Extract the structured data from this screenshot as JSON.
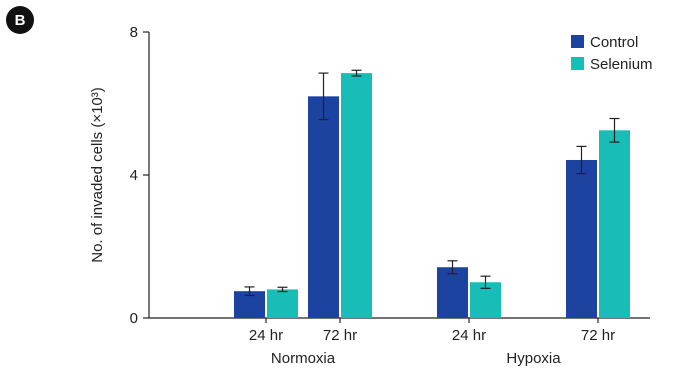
{
  "panel_label": "B",
  "colors": {
    "control": "#1c43a0",
    "selenium": "#17bdb6",
    "axis": "#222222"
  },
  "chart_data": {
    "type": "bar",
    "title": "",
    "ylabel": "No. of invaded cells (×10³)",
    "xlabel": "",
    "ylim": [
      0,
      8
    ],
    "yticks": [
      0,
      4,
      8
    ],
    "categories": [
      "24 hr",
      "72 hr",
      "24 hr",
      "72 hr"
    ],
    "groups": [
      {
        "label": "Normoxia",
        "categories": [
          0,
          1
        ]
      },
      {
        "label": "Hypoxia",
        "categories": [
          2,
          3
        ]
      }
    ],
    "series": [
      {
        "name": "Control",
        "values": [
          0.75,
          6.2,
          1.42,
          4.42
        ],
        "errors": [
          0.12,
          0.65,
          0.18,
          0.38
        ]
      },
      {
        "name": "Selenium",
        "values": [
          0.8,
          6.85,
          1.0,
          5.25
        ],
        "errors": [
          0.06,
          0.08,
          0.17,
          0.33
        ]
      }
    ],
    "legend_position": "top-right",
    "grid": false
  }
}
